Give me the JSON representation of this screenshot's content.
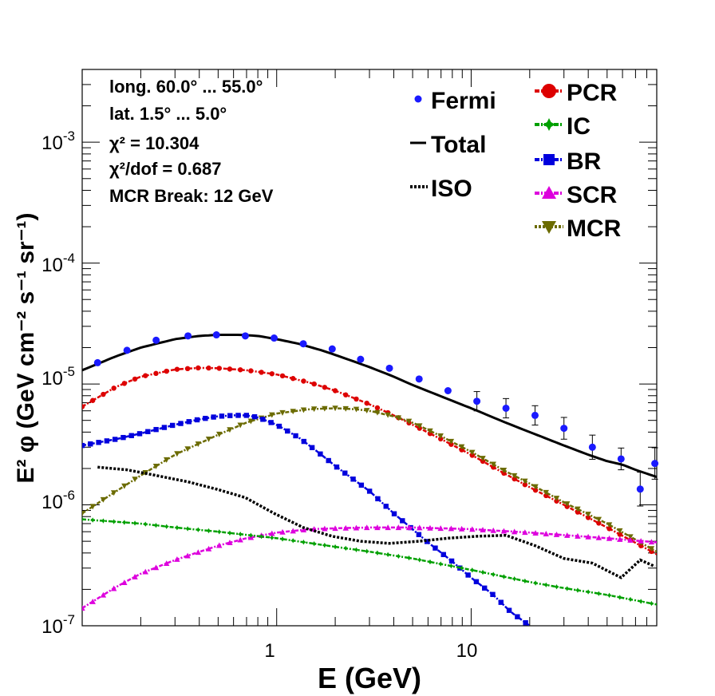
{
  "chart_data": {
    "type": "line",
    "x_scale": "log",
    "y_scale": "log",
    "xlim": [
      0.1,
      90
    ],
    "ylim": [
      1e-07,
      0.004
    ],
    "xlabel": "E (GeV)",
    "ylabel": "E² φ (GeV cm⁻² s⁻¹ sr⁻¹)",
    "x_ticks": [
      {
        "value": 1,
        "label": "1"
      },
      {
        "value": 10,
        "label": "10"
      }
    ],
    "y_ticks": [
      {
        "value": 1e-07,
        "base": "10",
        "exp": "-7"
      },
      {
        "value": 1e-06,
        "base": "10",
        "exp": "-6"
      },
      {
        "value": 1e-05,
        "base": "10",
        "exp": "-5"
      },
      {
        "value": 0.0001,
        "base": "10",
        "exp": "-4"
      },
      {
        "value": 0.001,
        "base": "10",
        "exp": "-3"
      }
    ],
    "info_box": {
      "longitude": "long. 60.0° ... 55.0°",
      "latitude": "lat. 1.5° ... 5.0°",
      "chi2": "χ² = 10.304",
      "chi2_dof": "χ²/dof = 0.687",
      "mcr_break": "MCR Break: 12 GeV"
    },
    "legend": [
      {
        "name": "Fermi",
        "marker": "circle",
        "color": "#1a1aff"
      },
      {
        "name": "Total",
        "marker": "solid-line",
        "color": "#000000"
      },
      {
        "name": "ISO",
        "marker": "dotted-line",
        "color": "#000000"
      },
      {
        "name": "PCR",
        "marker": "circle",
        "color": "#dd0000"
      },
      {
        "name": "IC",
        "marker": "star",
        "color": "#00a000"
      },
      {
        "name": "BR",
        "marker": "square",
        "color": "#0000dd"
      },
      {
        "name": "SCR",
        "marker": "triangle-up",
        "color": "#dd00dd"
      },
      {
        "name": "MCR",
        "marker": "triangle-down",
        "color": "#6b6b00"
      }
    ],
    "fermi": {
      "name": "Fermi",
      "points": [
        {
          "x": 0.12,
          "y": 1.5e-05,
          "err": 0
        },
        {
          "x": 0.17,
          "y": 1.9e-05,
          "err": 0
        },
        {
          "x": 0.24,
          "y": 2.3e-05,
          "err": 0
        },
        {
          "x": 0.35,
          "y": 2.5e-05,
          "err": 0
        },
        {
          "x": 0.49,
          "y": 2.55e-05,
          "err": 0
        },
        {
          "x": 0.69,
          "y": 2.5e-05,
          "err": 0
        },
        {
          "x": 0.97,
          "y": 2.4e-05,
          "err": 0
        },
        {
          "x": 1.37,
          "y": 2.15e-05,
          "err": 0
        },
        {
          "x": 1.93,
          "y": 1.95e-05,
          "err": 0
        },
        {
          "x": 2.7,
          "y": 1.6e-05,
          "err": 0
        },
        {
          "x": 3.8,
          "y": 1.35e-05,
          "err": 0
        },
        {
          "x": 5.4,
          "y": 1.1e-05,
          "err": 0
        },
        {
          "x": 7.6,
          "y": 8.8e-06,
          "err": 0
        },
        {
          "x": 10.7,
          "y": 7.2e-06,
          "err": 0.08
        },
        {
          "x": 15.1,
          "y": 6.3e-06,
          "err": 0.08
        },
        {
          "x": 21.3,
          "y": 5.5e-06,
          "err": 0.08
        },
        {
          "x": 30,
          "y": 4.3e-06,
          "err": 0.09
        },
        {
          "x": 42,
          "y": 3e-06,
          "err": 0.1
        },
        {
          "x": 59,
          "y": 2.4e-06,
          "err": 0.09
        },
        {
          "x": 74,
          "y": 1.35e-06,
          "err": 0.14
        },
        {
          "x": 88,
          "y": 2.2e-06,
          "err": 0.13
        }
      ]
    },
    "series": [
      {
        "name": "Total",
        "color": "#000000",
        "style": "solid",
        "marker": "none",
        "x": [
          0.1,
          0.15,
          0.2,
          0.3,
          0.4,
          0.5,
          0.65,
          0.8,
          1,
          1.3,
          1.7,
          2.2,
          3,
          4,
          5,
          7,
          10,
          15,
          20,
          30,
          40,
          50,
          60,
          70,
          90
        ],
        "y": [
          1.3e-05,
          1.7e-05,
          2e-05,
          2.35e-05,
          2.5e-05,
          2.55e-05,
          2.55e-05,
          2.5e-05,
          2.35e-05,
          2.15e-05,
          1.9e-05,
          1.65e-05,
          1.38e-05,
          1.15e-05,
          9.8e-06,
          7.9e-06,
          6.3e-06,
          4.8e-06,
          4e-06,
          3.1e-06,
          2.6e-06,
          2.3e-06,
          2.15e-06,
          1.95e-06,
          1.7e-06
        ]
      },
      {
        "name": "PCR",
        "color": "#dd0000",
        "style": "dash-dot",
        "marker": "circle",
        "x": [
          0.1,
          0.15,
          0.2,
          0.3,
          0.4,
          0.5,
          0.7,
          1,
          1.5,
          2,
          3,
          4,
          5,
          7,
          10,
          15,
          20,
          30,
          50,
          90
        ],
        "y": [
          6.5e-06,
          9.5e-06,
          1.15e-05,
          1.32e-05,
          1.36e-05,
          1.35e-05,
          1.3e-05,
          1.2e-05,
          1.02e-05,
          8.8e-06,
          6.8e-06,
          5.5e-06,
          4.6e-06,
          3.5e-06,
          2.6e-06,
          1.8e-06,
          1.4e-06,
          1e-06,
          6.5e-07,
          3.9e-07
        ]
      },
      {
        "name": "MCR",
        "color": "#6b6b00",
        "style": "dash-dot",
        "marker": "triangle-down",
        "x": [
          0.1,
          0.15,
          0.2,
          0.3,
          0.5,
          0.7,
          1,
          1.5,
          2,
          2.5,
          3,
          4,
          5,
          7,
          10,
          15,
          20,
          30,
          50,
          90
        ],
        "y": [
          8.5e-07,
          1.3e-06,
          1.75e-06,
          2.6e-06,
          3.8e-06,
          4.8e-06,
          5.7e-06,
          6.2e-06,
          6.3e-06,
          6.2e-06,
          6e-06,
          5.4e-06,
          4.8e-06,
          3.7e-06,
          2.75e-06,
          1.9e-06,
          1.5e-06,
          1.05e-06,
          7e-07,
          4.1e-07
        ]
      },
      {
        "name": "BR",
        "color": "#0000dd",
        "style": "dash-dot",
        "marker": "square",
        "x": [
          0.1,
          0.15,
          0.2,
          0.3,
          0.4,
          0.5,
          0.6,
          0.7,
          0.8,
          1,
          1.3,
          1.6,
          2,
          3,
          4,
          6,
          8,
          10,
          13,
          16,
          20
        ],
        "y": [
          3.1e-06,
          3.5e-06,
          3.9e-06,
          4.6e-06,
          5.1e-06,
          5.4e-06,
          5.5e-06,
          5.5e-06,
          5.3e-06,
          4.6e-06,
          3.6e-06,
          2.8e-06,
          2.1e-06,
          1.3e-06,
          8.5e-07,
          4.9e-07,
          3.4e-07,
          2.5e-07,
          1.8e-07,
          1.3e-07,
          1e-07
        ]
      },
      {
        "name": "SCR",
        "color": "#dd00dd",
        "style": "dash-dot",
        "marker": "triangle-up",
        "x": [
          0.1,
          0.15,
          0.2,
          0.3,
          0.5,
          0.7,
          1,
          1.5,
          2,
          3,
          5,
          10,
          20,
          50,
          90
        ],
        "y": [
          1.4e-07,
          2.1e-07,
          2.7e-07,
          3.5e-07,
          4.6e-07,
          5.3e-07,
          5.9e-07,
          6.3e-07,
          6.4e-07,
          6.5e-07,
          6.5e-07,
          6.3e-07,
          5.9e-07,
          5.3e-07,
          4.9e-07
        ]
      },
      {
        "name": "IC",
        "color": "#00a000",
        "style": "dash-dot",
        "marker": "star",
        "x": [
          0.1,
          0.2,
          0.3,
          0.5,
          1,
          2,
          3,
          5,
          10,
          20,
          30,
          50,
          90
        ],
        "y": [
          7.6e-07,
          7e-07,
          6.5e-07,
          6e-07,
          5.3e-07,
          4.5e-07,
          4.1e-07,
          3.6e-07,
          2.9e-07,
          2.3e-07,
          2.05e-07,
          1.8e-07,
          1.5e-07
        ]
      },
      {
        "name": "ISO",
        "color": "#000000",
        "style": "dotted",
        "marker": "none",
        "x": [
          0.12,
          0.17,
          0.24,
          0.35,
          0.49,
          0.69,
          0.97,
          1.37,
          1.93,
          2.7,
          3.8,
          5.4,
          7.6,
          10.7,
          15.1,
          21.3,
          30,
          42,
          59,
          74,
          88
        ],
        "y": [
          2.05e-06,
          1.95e-06,
          1.75e-06,
          1.55e-06,
          1.35e-06,
          1.15e-06,
          8.5e-07,
          6.5e-07,
          5.5e-07,
          5e-07,
          4.8e-07,
          5e-07,
          5.3e-07,
          5.5e-07,
          5.6e-07,
          4.6e-07,
          3.6e-07,
          3.3e-07,
          2.5e-07,
          3.5e-07,
          3.1e-07
        ]
      }
    ]
  }
}
